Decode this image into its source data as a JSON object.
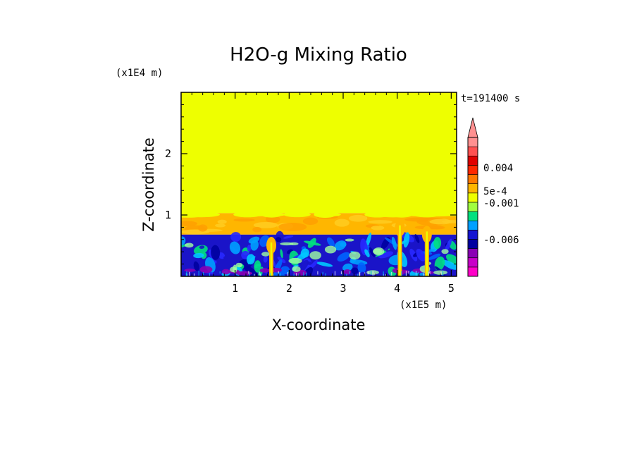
{
  "chart_data": {
    "type": "heatmap",
    "title": "H2O-g Mixing Ratio",
    "xlabel": "X-coordinate",
    "ylabel": "Z-coordinate",
    "x_scale_label": "(x1E5 m)",
    "y_scale_label": "(x1E4 m)",
    "time_label": "t=191400 s",
    "xlim": [
      0,
      5.1
    ],
    "ylim": [
      0,
      3.0
    ],
    "x_ticks": [
      1,
      2,
      3,
      4,
      5
    ],
    "y_ticks": [
      1,
      2
    ],
    "x_tick_labels": [
      "1",
      "2",
      "3",
      "4",
      "5"
    ],
    "y_tick_labels": [
      "1",
      "2"
    ],
    "layers": [
      {
        "z_bottom": 1.03,
        "z_top": 3.0,
        "color": "#eeff00",
        "description_value": "near 0"
      },
      {
        "z_bottom": 0.68,
        "z_top": 1.03,
        "color": "#ffb600",
        "description_value": "about 5e-4 to 0.001"
      },
      {
        "z_bottom": 0.0,
        "z_top": 0.68,
        "color": "#1a14c8",
        "description_value": "about -0.001 to -0.003"
      }
    ],
    "plumes": [
      {
        "x": 1.67,
        "z_top": 0.62
      },
      {
        "x": 4.05,
        "z_top": 0.9
      },
      {
        "x": 4.55,
        "z_top": 0.8
      }
    ],
    "colorbar": {
      "colors": [
        "#ff00c8",
        "#c800c8",
        "#8a00b4",
        "#0000a0",
        "#1414d2",
        "#00a0ff",
        "#00e080",
        "#a0ff40",
        "#eeff00",
        "#ffb600",
        "#ff7800",
        "#ff2800",
        "#e00000",
        "#ff5050",
        "#ff9090"
      ],
      "extend_top_color": "#ff9090",
      "tick_labels": [
        "0.004",
        "5e-4",
        "-0.001",
        "-0.006"
      ]
    }
  }
}
